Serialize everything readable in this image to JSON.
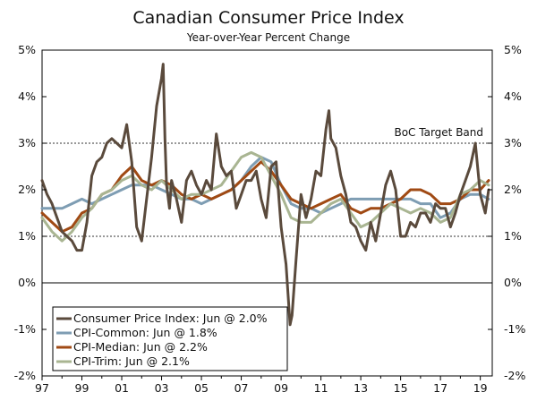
{
  "chart_data": {
    "type": "line",
    "title": "Canadian Consumer Price Index",
    "subtitle": "Year-over-Year Percent Change",
    "xlabel": "",
    "ylabel": "",
    "xlim": [
      1997.0,
      2019.6
    ],
    "ylim": [
      -2,
      5
    ],
    "grid": false,
    "reference_lines": [
      1,
      3
    ],
    "annotation": "BoC Target Band",
    "x_tick_labels": [
      "97",
      "99",
      "01",
      "03",
      "05",
      "07",
      "09",
      "11",
      "13",
      "15",
      "17",
      "19"
    ],
    "x_tick_years": [
      1997,
      1999,
      2001,
      2003,
      2005,
      2007,
      2009,
      2011,
      2013,
      2015,
      2017,
      2019
    ],
    "y_ticks": [
      -2,
      -1,
      0,
      1,
      2,
      3,
      4,
      5
    ],
    "y_tick_labels": [
      "-2%",
      "-1%",
      "0%",
      "1%",
      "2%",
      "3%",
      "4%",
      "5%"
    ],
    "legend_position": "bottom-left",
    "series": [
      {
        "name": "Consumer Price Index: Jun @ 2.0%",
        "color": "#5a4a3c",
        "x": [
          1997.0,
          1997.25,
          1997.5,
          1997.75,
          1998.0,
          1998.25,
          1998.5,
          1998.75,
          1999.0,
          1999.25,
          1999.5,
          1999.75,
          2000.0,
          2000.25,
          2000.5,
          2000.75,
          2001.0,
          2001.25,
          2001.5,
          2001.75,
          2002.0,
          2002.25,
          2002.5,
          2002.75,
          2003.0,
          2003.08,
          2003.17,
          2003.25,
          2003.4,
          2003.5,
          2003.75,
          2004.0,
          2004.25,
          2004.5,
          2004.75,
          2005.0,
          2005.25,
          2005.5,
          2005.75,
          2006.0,
          2006.25,
          2006.5,
          2006.75,
          2007.0,
          2007.25,
          2007.5,
          2007.75,
          2008.0,
          2008.25,
          2008.5,
          2008.75,
          2009.0,
          2009.25,
          2009.45,
          2009.55,
          2009.75,
          2010.0,
          2010.25,
          2010.5,
          2010.75,
          2011.0,
          2011.25,
          2011.4,
          2011.5,
          2011.75,
          2012.0,
          2012.25,
          2012.5,
          2012.75,
          2013.0,
          2013.25,
          2013.5,
          2013.75,
          2014.0,
          2014.25,
          2014.5,
          2014.75,
          2015.0,
          2015.25,
          2015.5,
          2015.75,
          2016.0,
          2016.25,
          2016.5,
          2016.75,
          2017.0,
          2017.25,
          2017.5,
          2017.75,
          2018.0,
          2018.25,
          2018.5,
          2018.75,
          2019.0,
          2019.25,
          2019.42
        ],
        "values": [
          2.2,
          1.9,
          1.7,
          1.4,
          1.1,
          1.0,
          0.9,
          0.7,
          0.7,
          1.3,
          2.3,
          2.6,
          2.7,
          3.0,
          3.1,
          3.0,
          2.9,
          3.4,
          2.6,
          1.2,
          0.9,
          1.8,
          2.7,
          3.8,
          4.4,
          4.7,
          3.1,
          2.1,
          1.6,
          2.2,
          1.8,
          1.3,
          2.2,
          2.4,
          2.1,
          1.9,
          2.2,
          2.0,
          3.2,
          2.5,
          2.3,
          2.4,
          1.6,
          1.9,
          2.2,
          2.2,
          2.4,
          1.8,
          1.4,
          2.5,
          2.6,
          1.2,
          0.4,
          -0.9,
          -0.7,
          0.5,
          1.9,
          1.4,
          1.8,
          2.4,
          2.3,
          3.3,
          3.7,
          3.1,
          2.9,
          2.3,
          1.9,
          1.3,
          1.2,
          0.9,
          0.7,
          1.3,
          0.9,
          1.5,
          2.1,
          2.4,
          2.0,
          1.0,
          1.0,
          1.3,
          1.2,
          1.5,
          1.5,
          1.3,
          1.7,
          1.6,
          1.6,
          1.2,
          1.5,
          1.9,
          2.2,
          2.5,
          3.0,
          1.9,
          1.5,
          2.0
        ]
      },
      {
        "name": "CPI-Common: Jun @ 1.8%",
        "color": "#7e9db3",
        "x": [
          1997.0,
          1997.5,
          1998.0,
          1998.5,
          1999.0,
          1999.5,
          2000.0,
          2000.5,
          2001.0,
          2001.5,
          2002.0,
          2002.5,
          2003.0,
          2003.5,
          2004.0,
          2004.5,
          2005.0,
          2005.5,
          2006.0,
          2006.5,
          2007.0,
          2007.5,
          2008.0,
          2008.5,
          2009.0,
          2009.5,
          2010.0,
          2010.5,
          2011.0,
          2011.5,
          2012.0,
          2012.5,
          2013.0,
          2013.5,
          2014.0,
          2014.5,
          2015.0,
          2015.5,
          2016.0,
          2016.5,
          2017.0,
          2017.5,
          2018.0,
          2018.5,
          2019.0,
          2019.42
        ],
        "values": [
          1.6,
          1.6,
          1.6,
          1.7,
          1.8,
          1.7,
          1.8,
          1.9,
          2.0,
          2.1,
          2.1,
          2.1,
          2.0,
          1.9,
          1.8,
          1.8,
          1.7,
          1.8,
          1.9,
          2.0,
          2.2,
          2.5,
          2.7,
          2.6,
          2.1,
          1.7,
          1.6,
          1.6,
          1.5,
          1.6,
          1.7,
          1.8,
          1.8,
          1.8,
          1.8,
          1.8,
          1.8,
          1.8,
          1.7,
          1.7,
          1.4,
          1.5,
          1.8,
          1.9,
          1.9,
          1.8
        ]
      },
      {
        "name": "CPI-Median: Jun @ 2.2%",
        "color": "#a04a14",
        "x": [
          1997.0,
          1997.5,
          1998.0,
          1998.5,
          1999.0,
          1999.5,
          2000.0,
          2000.5,
          2001.0,
          2001.5,
          2002.0,
          2002.5,
          2003.0,
          2003.5,
          2004.0,
          2004.5,
          2005.0,
          2005.5,
          2006.0,
          2006.5,
          2007.0,
          2007.5,
          2008.0,
          2008.5,
          2009.0,
          2009.5,
          2010.0,
          2010.5,
          2011.0,
          2011.5,
          2012.0,
          2012.5,
          2013.0,
          2013.5,
          2014.0,
          2014.5,
          2015.0,
          2015.5,
          2016.0,
          2016.5,
          2017.0,
          2017.5,
          2018.0,
          2018.5,
          2019.0,
          2019.42
        ],
        "values": [
          1.5,
          1.3,
          1.1,
          1.2,
          1.5,
          1.6,
          1.9,
          2.0,
          2.3,
          2.5,
          2.2,
          2.1,
          2.2,
          2.1,
          1.9,
          1.8,
          1.9,
          1.8,
          1.9,
          2.0,
          2.2,
          2.4,
          2.6,
          2.4,
          2.1,
          1.8,
          1.7,
          1.6,
          1.7,
          1.8,
          1.9,
          1.6,
          1.5,
          1.6,
          1.6,
          1.7,
          1.8,
          2.0,
          2.0,
          1.9,
          1.7,
          1.7,
          1.8,
          2.0,
          2.0,
          2.2
        ]
      },
      {
        "name": "CPI-Trim: Jun @ 2.1%",
        "color": "#a9b592",
        "x": [
          1997.0,
          1997.5,
          1998.0,
          1998.5,
          1999.0,
          1999.5,
          2000.0,
          2000.5,
          2001.0,
          2001.5,
          2002.0,
          2002.5,
          2003.0,
          2003.5,
          2004.0,
          2004.5,
          2005.0,
          2005.5,
          2006.0,
          2006.5,
          2007.0,
          2007.5,
          2008.0,
          2008.5,
          2009.0,
          2009.5,
          2010.0,
          2010.5,
          2011.0,
          2011.5,
          2012.0,
          2012.5,
          2013.0,
          2013.5,
          2014.0,
          2014.5,
          2015.0,
          2015.5,
          2016.0,
          2016.5,
          2017.0,
          2017.5,
          2018.0,
          2018.5,
          2019.0,
          2019.42
        ],
        "values": [
          1.4,
          1.1,
          0.9,
          1.1,
          1.4,
          1.6,
          1.9,
          2.0,
          2.2,
          2.3,
          2.1,
          2.0,
          2.2,
          2.0,
          1.8,
          1.9,
          1.9,
          2.0,
          2.1,
          2.4,
          2.7,
          2.8,
          2.7,
          2.3,
          1.9,
          1.4,
          1.3,
          1.3,
          1.5,
          1.7,
          1.8,
          1.5,
          1.2,
          1.3,
          1.5,
          1.7,
          1.6,
          1.5,
          1.6,
          1.5,
          1.3,
          1.4,
          1.9,
          2.0,
          2.2,
          2.1
        ]
      }
    ]
  }
}
